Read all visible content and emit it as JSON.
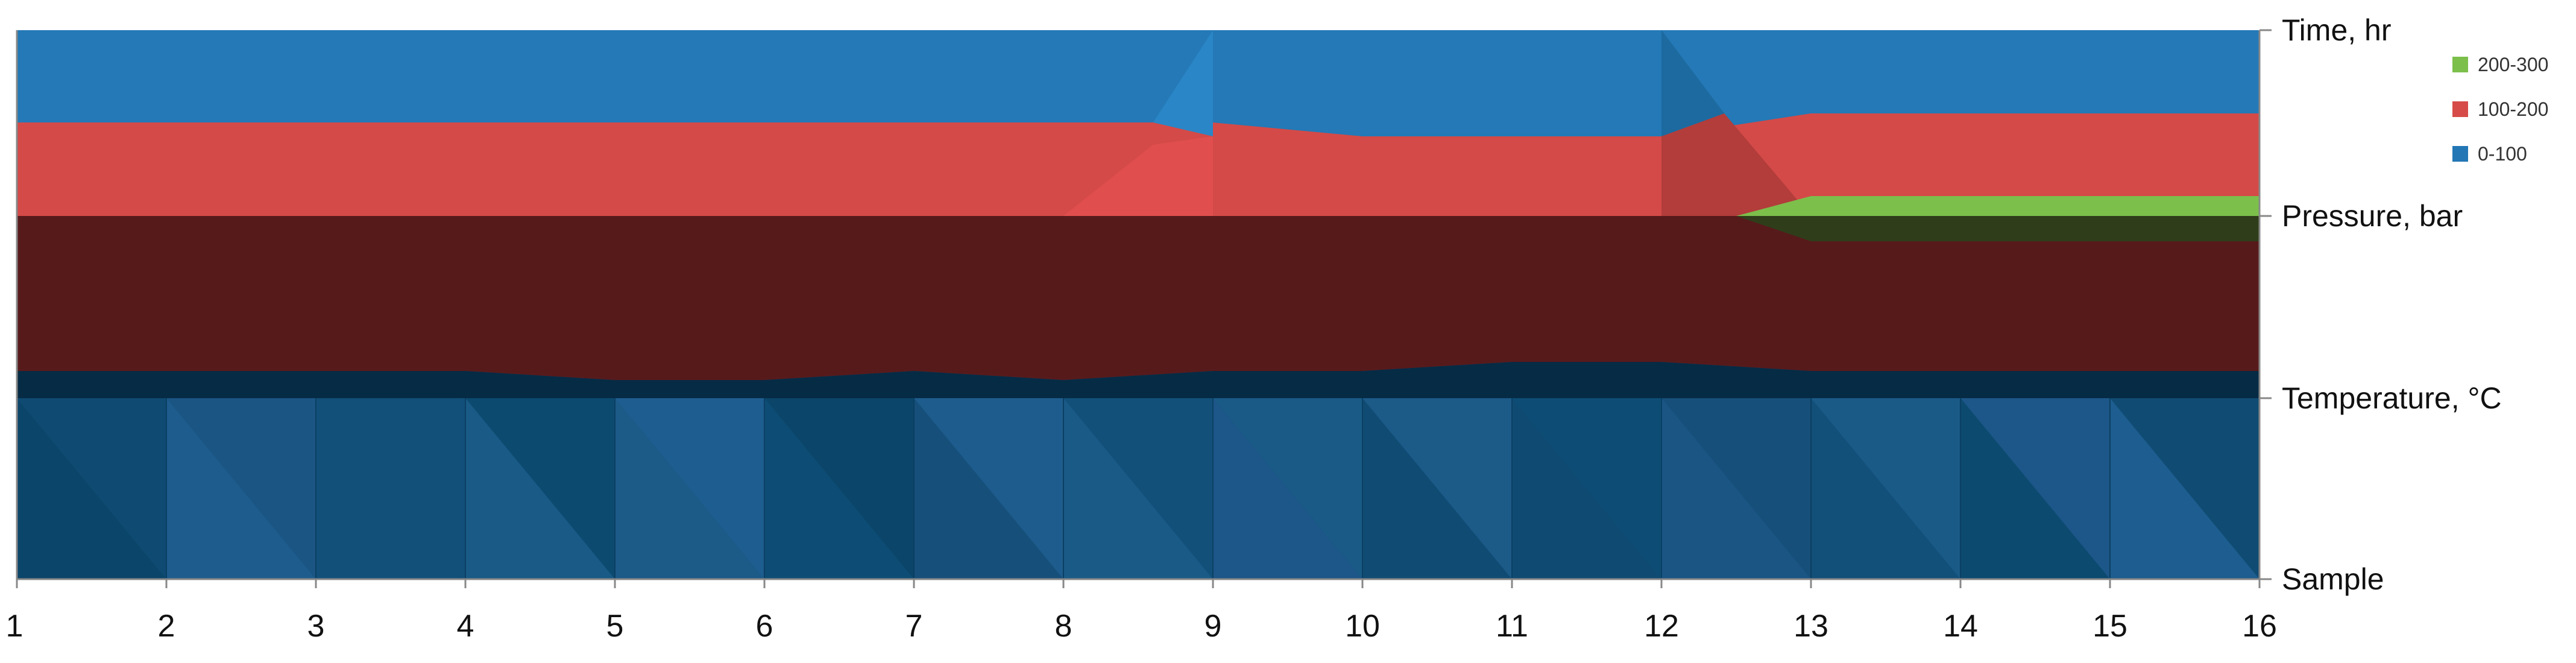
{
  "chart_data": {
    "type": "surface",
    "title": "",
    "x_categories": [
      "1",
      "2",
      "3",
      "4",
      "5",
      "6",
      "7",
      "8",
      "9",
      "10",
      "11",
      "12",
      "13",
      "14",
      "15",
      "16"
    ],
    "y_series": [
      "Sample",
      "Temperature, °C",
      "Pressure, bar",
      "Time, hr"
    ],
    "zlim": [
      0,
      300
    ],
    "bands": [
      {
        "label": "200-300",
        "color": "#7cbf4b"
      },
      {
        "label": "100-200",
        "color": "#d64b48"
      },
      {
        "label": "0-100",
        "color": "#2377b5"
      }
    ],
    "data": {
      "Sample": [
        0,
        0,
        0,
        0,
        0,
        0,
        0,
        0,
        0,
        0,
        0,
        0,
        0,
        0,
        0,
        0
      ],
      "Temperature, °C": [
        43,
        43,
        43,
        43,
        42,
        42,
        43,
        42,
        43,
        43,
        44,
        44,
        43,
        43,
        43,
        43
      ],
      "Pressure, bar": [
        160,
        160,
        160,
        160,
        158,
        161,
        158,
        160,
        157,
        163,
        163,
        160,
        196,
        196,
        196,
        196
      ],
      "Time, hr": [
        98,
        98,
        98,
        98,
        98,
        98,
        98,
        98,
        98,
        95,
        95,
        95,
        103,
        103,
        103,
        103
      ]
    },
    "legend_position": "top-right",
    "grid": false
  }
}
